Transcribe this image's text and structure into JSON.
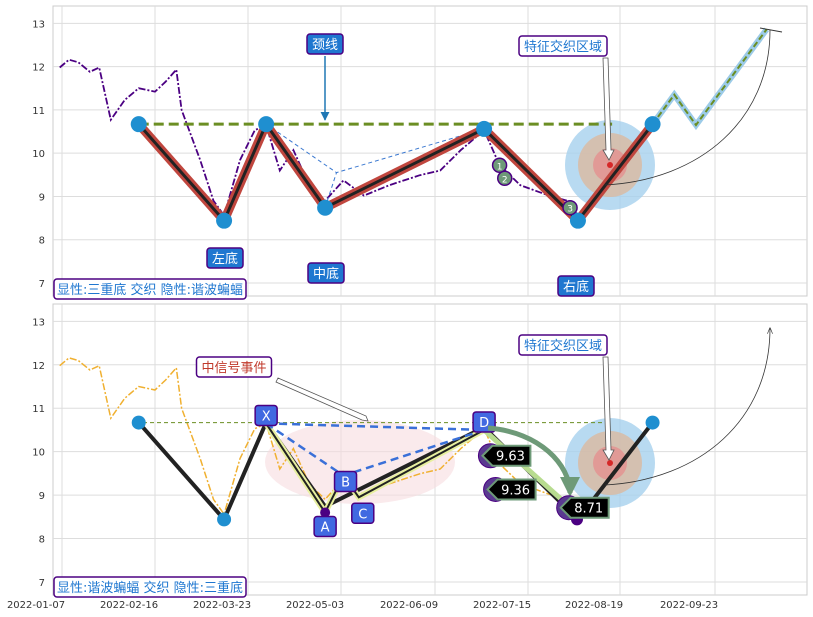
{
  "chart_data": [
    {
      "type": "line",
      "panel": "top",
      "ylim": [
        6.7,
        13.4
      ],
      "yticks": [
        7,
        8,
        9,
        10,
        11,
        12,
        13
      ],
      "xticks": [
        "2022-01-07",
        "2022-02-16",
        "2022-03-23",
        "2022-05-03",
        "2022-06-09",
        "2022-07-15",
        "2022-08-19",
        "2022-09-23"
      ],
      "grid": true,
      "price_color": "#4b0082",
      "pivots": [
        [
          "2022-02-09",
          10.67
        ],
        [
          "2022-03-14",
          8.44
        ],
        [
          "2022-03-31",
          10.67
        ],
        [
          "2022-04-26",
          8.74
        ],
        [
          "2022-06-28",
          10.56
        ],
        [
          "2022-08-03",
          8.44
        ],
        [
          "2022-08-31",
          10.67
        ]
      ],
      "neckline": {
        "value": 10.67,
        "from": "2022-02-09",
        "to": "2022-08-16",
        "color": "#6b8e23"
      },
      "projection": [
        [
          "2022-08-31",
          10.67
        ],
        [
          "2022-09-08",
          11.35
        ],
        [
          "2022-09-16",
          10.65
        ],
        [
          "2022-10-12",
          12.86
        ]
      ],
      "markers": [
        {
          "label": "1",
          "date": "2022-07-04",
          "value": 9.72
        },
        {
          "label": "2",
          "date": "2022-07-06",
          "value": 9.42
        },
        {
          "label": "3",
          "date": "2022-07-31",
          "value": 8.74
        }
      ],
      "annotations": {
        "neckline": "颈线",
        "zone": "特征交织区域",
        "middle": "中底",
        "right": "右底",
        "left": "左底",
        "pattern": "显性:三重底 交织 隐性:谐波蝙蝠"
      }
    },
    {
      "type": "line",
      "panel": "bottom",
      "ylim": [
        6.7,
        13.4
      ],
      "yticks": [
        7,
        8,
        9,
        10,
        11,
        12,
        13
      ],
      "grid": true,
      "price_color": "#f0b030",
      "xabcd": [
        {
          "label": "X",
          "date": "2022-03-31",
          "value": 10.65
        },
        {
          "label": "A",
          "date": "2022-04-26",
          "value": 8.6
        },
        {
          "label": "B",
          "date": "2022-05-04",
          "value": 9.45
        },
        {
          "label": "C",
          "date": "2022-05-10",
          "value": 8.95
        },
        {
          "label": "D",
          "date": "2022-06-28",
          "value": 10.5
        }
      ],
      "value_labels": [
        {
          "text": "9.63",
          "date": "2022-07-02",
          "value": 9.63
        },
        {
          "text": "9.36",
          "date": "2022-07-04",
          "value": 9.36
        },
        {
          "text": "8.71",
          "date": "2022-08-01",
          "value": 8.71
        }
      ],
      "annotations": {
        "event": "中信号事件",
        "zone": "特征交织区域",
        "pattern": "显性:谐波蝙蝠 交织 隐性:三重底"
      }
    }
  ],
  "price_series": [
    [
      "2022-01-06",
      11.98
    ],
    [
      "2022-01-10",
      12.16
    ],
    [
      "2022-01-14",
      12.1
    ],
    [
      "2022-01-19",
      11.88
    ],
    [
      "2022-01-23",
      11.98
    ],
    [
      "2022-01-28",
      10.77
    ],
    [
      "2022-02-03",
      11.23
    ],
    [
      "2022-02-09",
      11.5
    ],
    [
      "2022-02-16",
      11.42
    ],
    [
      "2022-02-20",
      11.65
    ],
    [
      "2022-02-24",
      11.93
    ],
    [
      "2022-02-26",
      11.0
    ],
    [
      "2022-03-05",
      9.84
    ],
    [
      "2022-03-10",
      8.9
    ],
    [
      "2022-03-14",
      8.56
    ],
    [
      "2022-03-20",
      9.84
    ],
    [
      "2022-03-26",
      10.53
    ],
    [
      "2022-03-31",
      10.65
    ],
    [
      "2022-04-06",
      9.6
    ],
    [
      "2022-04-12",
      10.07
    ],
    [
      "2022-04-19",
      9.26
    ],
    [
      "2022-04-26",
      8.9
    ],
    [
      "2022-05-04",
      9.37
    ],
    [
      "2022-05-12",
      9.02
    ],
    [
      "2022-05-22",
      9.26
    ],
    [
      "2022-06-03",
      9.49
    ],
    [
      "2022-06-11",
      9.6
    ],
    [
      "2022-06-19",
      10.07
    ],
    [
      "2022-06-28",
      10.53
    ],
    [
      "2022-07-04",
      9.72
    ],
    [
      "2022-07-12",
      9.26
    ],
    [
      "2022-07-23",
      9.02
    ],
    [
      "2022-07-30",
      8.9
    ],
    [
      "2022-08-03",
      8.56
    ],
    [
      "2022-08-10",
      9.02
    ],
    [
      "2022-08-15",
      9.37
    ]
  ]
}
